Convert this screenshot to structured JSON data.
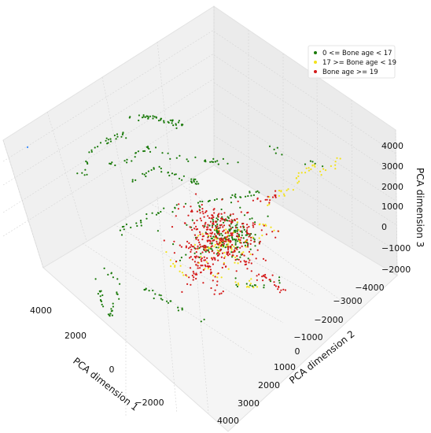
{
  "chart_data": {
    "type": "scatter",
    "projection": "3d",
    "grid": true,
    "legend_position": "top-right",
    "axes": {
      "x": {
        "label": "PCA dimension 1",
        "ticks": [
          4000,
          2000,
          0,
          -2000
        ]
      },
      "y": {
        "label": "PCA dimension 2",
        "ticks": [
          -4000,
          -3000,
          -2000,
          -1000,
          0,
          1000,
          2000,
          3000,
          4000
        ]
      },
      "z": {
        "label": "PCA dimension 3",
        "ticks": [
          4000,
          3000,
          2000,
          1000,
          0,
          -1000,
          -2000
        ]
      }
    },
    "series": [
      {
        "name": "0 <= Bone age < 17",
        "color": "#1a7a0a"
      },
      {
        "name": "17 >= Bone age < 19",
        "color": "#f2e21a"
      },
      {
        "name": "Bone age >= 19",
        "color": "#d41a1a"
      }
    ],
    "x_tick_labels": [
      "4000",
      "2000",
      "0",
      "−2000"
    ],
    "y_tick_labels": [
      "−4000",
      "−3000",
      "−2000",
      "−1000",
      "0",
      "1000",
      "2000",
      "3000",
      "4000"
    ],
    "z_tick_labels": [
      "4000",
      "3000",
      "2000",
      "1000",
      "0",
      "−1000",
      "−2000"
    ]
  }
}
